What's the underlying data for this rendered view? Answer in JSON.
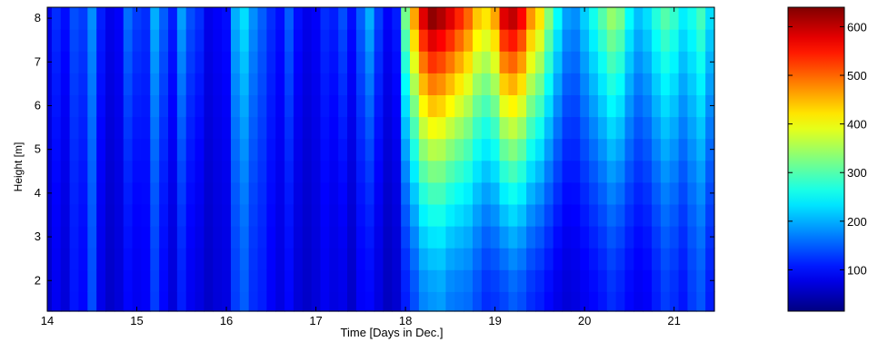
{
  "chart_data": {
    "type": "heatmap",
    "title": "",
    "xlabel": "Time [Days in Dec.]",
    "ylabel": "Height [m]",
    "xlim": [
      14.0,
      21.45
    ],
    "ylim": [
      1.3,
      8.25
    ],
    "xticks": [
      14,
      15,
      16,
      17,
      18,
      19,
      20,
      21
    ],
    "yticks": [
      2,
      3,
      4,
      5,
      6,
      7,
      8
    ],
    "colorbar": {
      "colormap": "jet",
      "range": [
        15,
        640
      ],
      "ticks": [
        100,
        200,
        300,
        400,
        500,
        600
      ],
      "colors": [
        "#00008f",
        "#0000ff",
        "#00ffff",
        "#ffff00",
        "#ff0000",
        "#800000"
      ]
    },
    "grid": false,
    "x": [
      14.0,
      14.1,
      14.2,
      14.3,
      14.4,
      14.5,
      14.6,
      14.7,
      14.8,
      14.9,
      15.0,
      15.1,
      15.2,
      15.3,
      15.4,
      15.5,
      15.6,
      15.7,
      15.8,
      15.9,
      16.0,
      16.1,
      16.2,
      16.3,
      16.4,
      16.5,
      16.6,
      16.7,
      16.8,
      16.9,
      17.0,
      17.1,
      17.2,
      17.3,
      17.4,
      17.5,
      17.6,
      17.7,
      17.8,
      17.9,
      18.0,
      18.1,
      18.2,
      18.3,
      18.4,
      18.5,
      18.6,
      18.7,
      18.8,
      18.9,
      19.0,
      19.1,
      19.2,
      19.3,
      19.4,
      19.5,
      19.6,
      19.7,
      19.8,
      19.9,
      20.0,
      20.1,
      20.2,
      20.3,
      20.4,
      20.5,
      20.6,
      20.7,
      20.8,
      20.9,
      21.0,
      21.1,
      21.2,
      21.3,
      21.4
    ],
    "y": [
      1.5,
      2.0,
      2.5,
      3.0,
      3.5,
      4.0,
      4.5,
      5.0,
      5.5,
      6.0,
      6.5,
      7.0,
      7.5,
      8.0
    ],
    "intensity_by_time_low": [
      60,
      85,
      70,
      105,
      95,
      140,
      80,
      60,
      70,
      95,
      85,
      90,
      130,
      95,
      70,
      110,
      85,
      75,
      60,
      70,
      75,
      130,
      150,
      120,
      110,
      90,
      75,
      95,
      70,
      60,
      70,
      85,
      75,
      80,
      60,
      90,
      95,
      75,
      55,
      65,
      110,
      140,
      175,
      185,
      190,
      170,
      165,
      160,
      140,
      120,
      125,
      135,
      150,
      140,
      120,
      110,
      95,
      80,
      70,
      75,
      85,
      95,
      105,
      120,
      110,
      95,
      85,
      90,
      110,
      130,
      120,
      105,
      130,
      145,
      110
    ],
    "intensity_by_time_high": [
      80,
      120,
      100,
      140,
      130,
      180,
      110,
      80,
      90,
      160,
      130,
      120,
      200,
      150,
      110,
      190,
      140,
      120,
      80,
      90,
      100,
      200,
      230,
      180,
      150,
      120,
      100,
      150,
      100,
      80,
      90,
      120,
      110,
      140,
      100,
      150,
      200,
      130,
      90,
      110,
      320,
      460,
      580,
      630,
      610,
      580,
      540,
      500,
      440,
      420,
      460,
      580,
      600,
      560,
      470,
      420,
      330,
      250,
      190,
      180,
      220,
      260,
      300,
      340,
      320,
      250,
      210,
      230,
      270,
      300,
      280,
      240,
      260,
      290,
      230
    ]
  }
}
